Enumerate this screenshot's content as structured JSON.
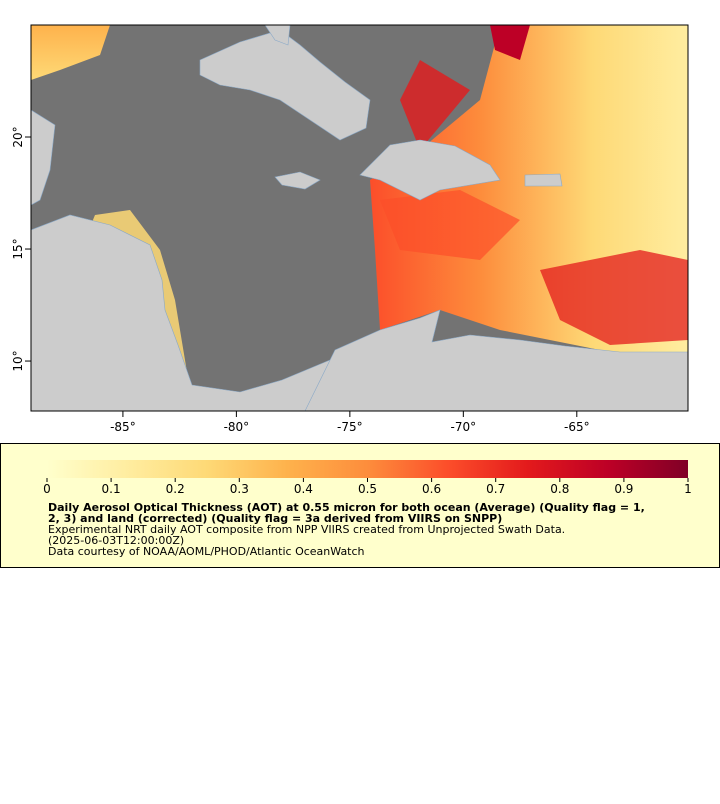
{
  "map": {
    "xlim": [
      -89.05,
      -60.1
    ],
    "ylim": [
      7.77,
      25.0
    ],
    "xticks": [
      {
        "value": -85,
        "label": "-85°"
      },
      {
        "value": -80,
        "label": "-80°"
      },
      {
        "value": -75,
        "label": "-75°"
      },
      {
        "value": -70,
        "label": "-70°"
      },
      {
        "value": -65,
        "label": "-65°"
      }
    ],
    "yticks": [
      {
        "value": 10,
        "label": "10°"
      },
      {
        "value": 15,
        "label": "15°"
      },
      {
        "value": 20,
        "label": "20°"
      }
    ],
    "ocean_color": "#737373",
    "land_color": "#cccccc"
  },
  "colorbar": {
    "range": [
      0,
      1
    ],
    "ticks": [
      0,
      0.1,
      0.2,
      0.3,
      0.4,
      0.5,
      0.6,
      0.7,
      0.8,
      0.9,
      1
    ],
    "colors": [
      "#ffffcc",
      "#ffeda0",
      "#fed976",
      "#feb24c",
      "#fd8d3c",
      "#fc4e2a",
      "#e31a1c",
      "#bd0026",
      "#800026"
    ]
  },
  "caption": {
    "title_lines": [
      "Daily Aerosol Optical Thickness (AOT) at 0.55 micron for both ocean (Average) (Quality flag = 1,",
      "2, 3) and land (corrected) (Quality flag = 3a derived from VIIRS on SNPP)"
    ],
    "lines": [
      "Experimental NRT daily AOT composite from NPP VIIRS created from Unprojected Swath Data.",
      "(2025-06-03T12:00:00Z)",
      "Data courtesy of NOAA/AOML/PHOD/Atlantic OceanWatch"
    ]
  }
}
